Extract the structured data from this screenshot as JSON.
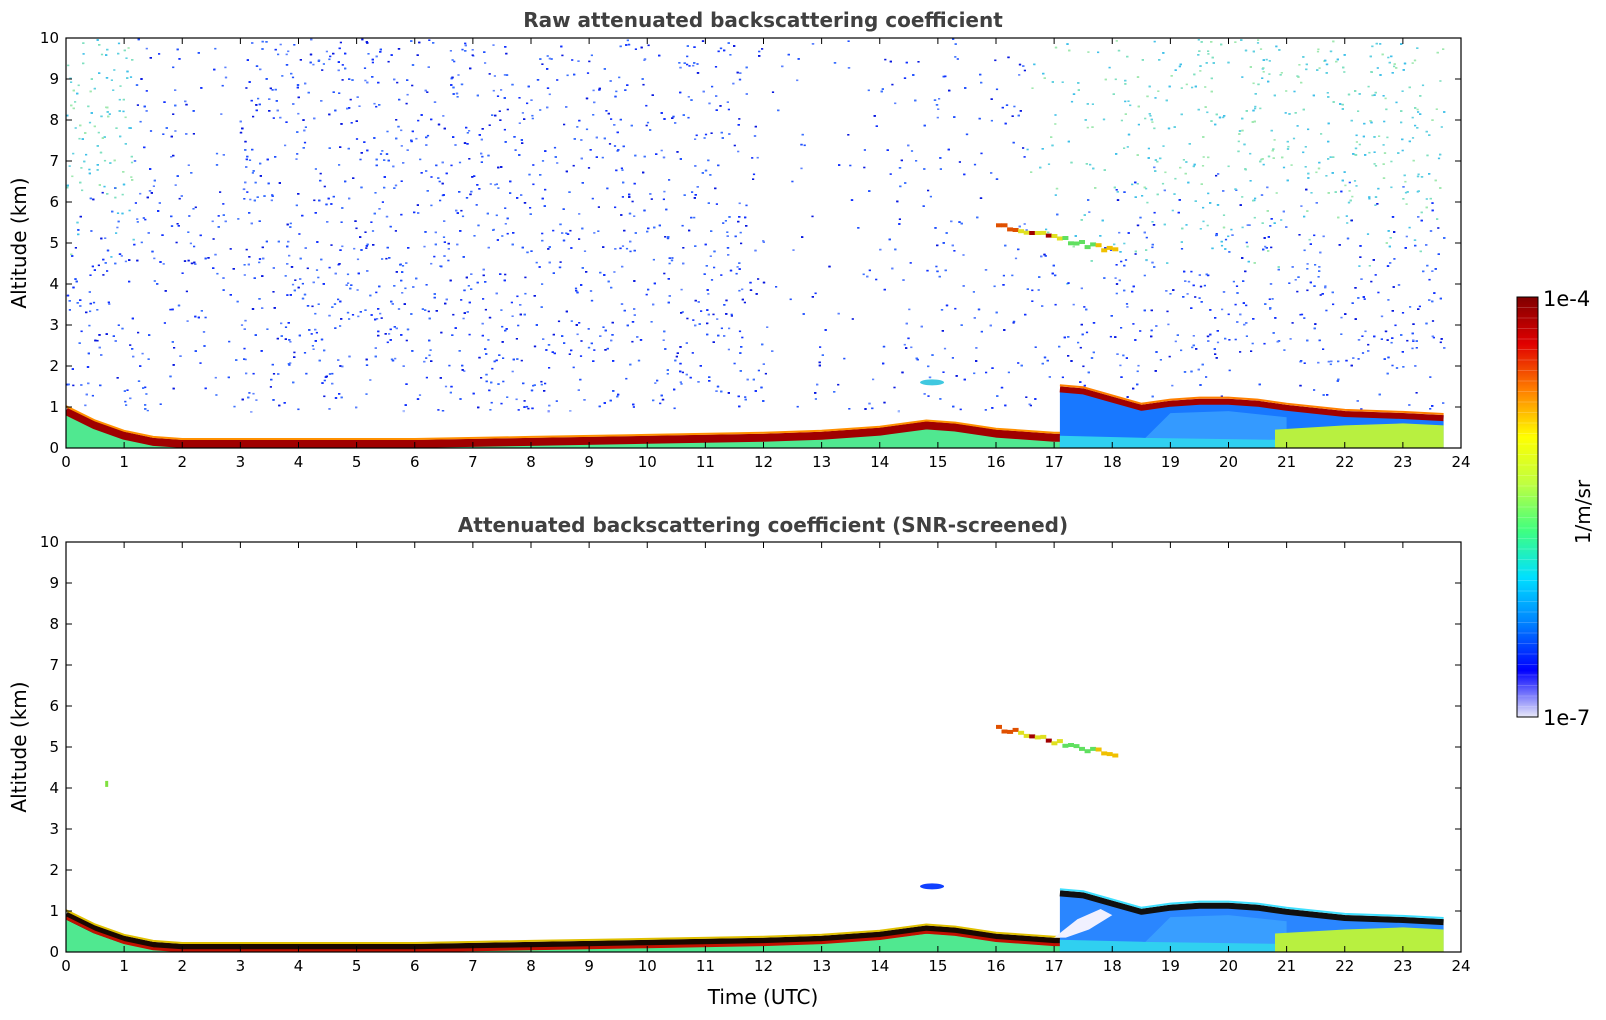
{
  "chart_data": [
    {
      "type": "heatmap",
      "title": "Raw attenuated backscattering coefficient",
      "xlabel": "",
      "ylabel": "Altitude (km)",
      "xlim": [
        0,
        24
      ],
      "ylim": [
        0,
        10
      ],
      "x_ticks": [
        "0",
        "1",
        "2",
        "3",
        "4",
        "5",
        "6",
        "7",
        "8",
        "9",
        "10",
        "11",
        "12",
        "13",
        "14",
        "15",
        "16",
        "17",
        "18",
        "19",
        "20",
        "21",
        "22",
        "23",
        "24"
      ],
      "y_ticks": [
        "0",
        "1",
        "2",
        "3",
        "4",
        "5",
        "6",
        "7",
        "8",
        "9",
        "10"
      ],
      "data_end_time": 23.7,
      "features": [
        {
          "kind": "surface_layer",
          "top_km_by_hour": [
            [
              0,
              0.95
            ],
            [
              0.5,
              0.6
            ],
            [
              1,
              0.35
            ],
            [
              1.5,
              0.2
            ],
            [
              2,
              0.15
            ],
            [
              4,
              0.15
            ],
            [
              6,
              0.15
            ],
            [
              8,
              0.2
            ],
            [
              10,
              0.25
            ],
            [
              12,
              0.3
            ],
            [
              13,
              0.35
            ],
            [
              14,
              0.45
            ],
            [
              14.8,
              0.6
            ],
            [
              15.3,
              0.55
            ],
            [
              16,
              0.4
            ],
            [
              17,
              0.3
            ],
            [
              17.5,
              0.3
            ]
          ]
        },
        {
          "kind": "elevated_cloud",
          "time_range": [
            16.0,
            18.0
          ],
          "altitude_km": [
            5.5,
            4.85
          ]
        },
        {
          "kind": "small_cloud",
          "time": 14.9,
          "altitude_km": 1.6
        },
        {
          "kind": "boundary_layer_top",
          "top_km_by_hour": [
            [
              17.1,
              1.45
            ],
            [
              17.5,
              1.4
            ],
            [
              18,
              1.2
            ],
            [
              18.5,
              1.0
            ],
            [
              19,
              1.1
            ],
            [
              19.5,
              1.15
            ],
            [
              20,
              1.15
            ],
            [
              20.5,
              1.1
            ],
            [
              21,
              1.0
            ],
            [
              22,
              0.85
            ],
            [
              23,
              0.8
            ],
            [
              23.7,
              0.75
            ]
          ]
        }
      ]
    },
    {
      "type": "heatmap",
      "title": "Attenuated backscattering coefficient (SNR-screened)",
      "xlabel": "Time (UTC)",
      "ylabel": "Altitude (km)",
      "xlim": [
        0,
        24
      ],
      "ylim": [
        0,
        10
      ],
      "x_ticks": [
        "0",
        "1",
        "2",
        "3",
        "4",
        "5",
        "6",
        "7",
        "8",
        "9",
        "10",
        "11",
        "12",
        "13",
        "14",
        "15",
        "16",
        "17",
        "18",
        "19",
        "20",
        "21",
        "22",
        "23",
        "24"
      ],
      "y_ticks": [
        "0",
        "1",
        "2",
        "3",
        "4",
        "5",
        "6",
        "7",
        "8",
        "9",
        "10"
      ],
      "data_end_time": 23.7,
      "features": [
        {
          "kind": "surface_layer",
          "screened": true
        },
        {
          "kind": "elevated_cloud",
          "time_range": [
            16.0,
            18.0
          ],
          "altitude_km": [
            5.5,
            4.85
          ]
        },
        {
          "kind": "small_cloud",
          "time": 14.9,
          "altitude_km": 1.6
        },
        {
          "kind": "speck",
          "time": 0.7,
          "altitude_km": 4.1
        }
      ]
    }
  ],
  "colorbar": {
    "label": "1/m/sr",
    "max_label": "1e-4",
    "min_label": "1e-7",
    "colormap": [
      "#e8e8f8",
      "#0000ff",
      "#0080ff",
      "#00e0ff",
      "#40ff80",
      "#c0ff40",
      "#ffff00",
      "#ff8000",
      "#e00000",
      "#800000"
    ]
  }
}
